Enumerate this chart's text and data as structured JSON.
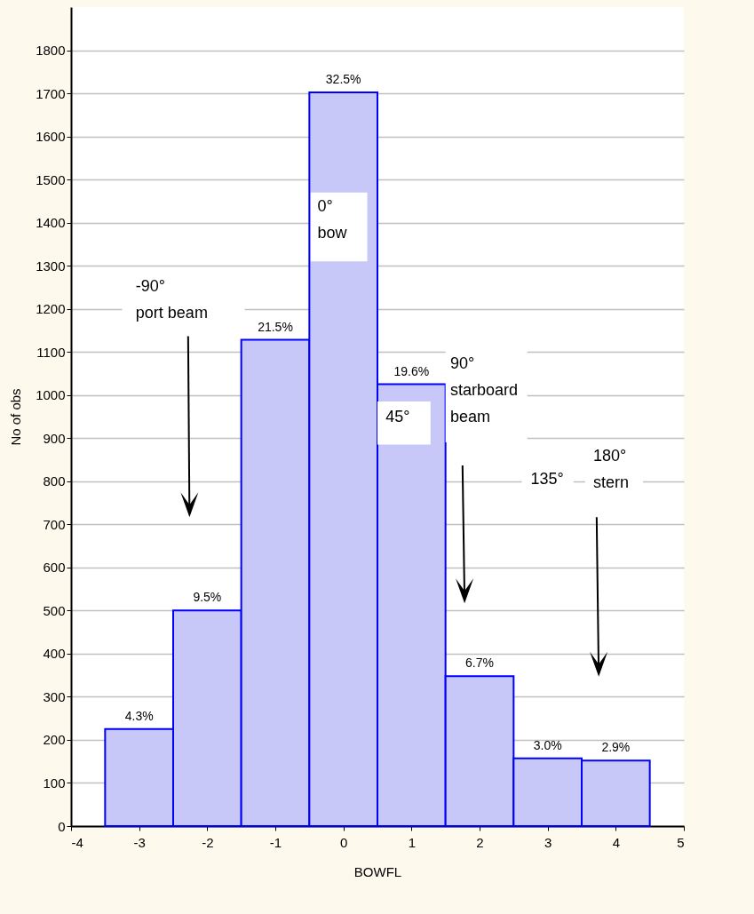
{
  "chart_data": {
    "type": "histogram",
    "xlabel": "BOWFL",
    "ylabel": "No of obs",
    "bins": [
      -3.5,
      -2.5,
      -1.5,
      -0.5,
      0.5,
      1.5,
      2.5,
      3.5,
      4.5
    ],
    "values": [
      225,
      500,
      1128,
      1702,
      1025,
      348,
      157,
      152
    ],
    "color": "#c8c8f8",
    "xlim": [
      -4,
      5
    ],
    "xticks": [
      -4,
      -3,
      -2,
      -1,
      0,
      1,
      2,
      3,
      4,
      5
    ],
    "ylim": [
      0,
      1900
    ],
    "yticks": [
      0,
      100,
      200,
      300,
      400,
      500,
      600,
      700,
      800,
      900,
      1000,
      1100,
      1200,
      1300,
      1400,
      1500,
      1600,
      1700,
      1800
    ],
    "grid": "y",
    "annotations": [
      "-90°\nport beam",
      "0°\nbow",
      "45°",
      "90°\nstarboard\nbeam",
      "135°",
      "180°\nstern",
      {
        "text": "4.3%",
        "x": -3,
        "y": 225
      },
      {
        "text": "9.5%",
        "x": -2,
        "y": 500
      },
      {
        "text": "21.5%",
        "x": -1,
        "y": 1128
      },
      {
        "text": "32.5%",
        "x": 0,
        "y": 1702
      },
      {
        "text": "19.6%",
        "x": 1,
        "y": 1025
      },
      {
        "text": "6.7%",
        "x": 2,
        "y": 348
      },
      {
        "text": "3.0%",
        "x": 3,
        "y": 157
      },
      {
        "text": "2.9%",
        "x": 4,
        "y": 152
      }
    ]
  }
}
